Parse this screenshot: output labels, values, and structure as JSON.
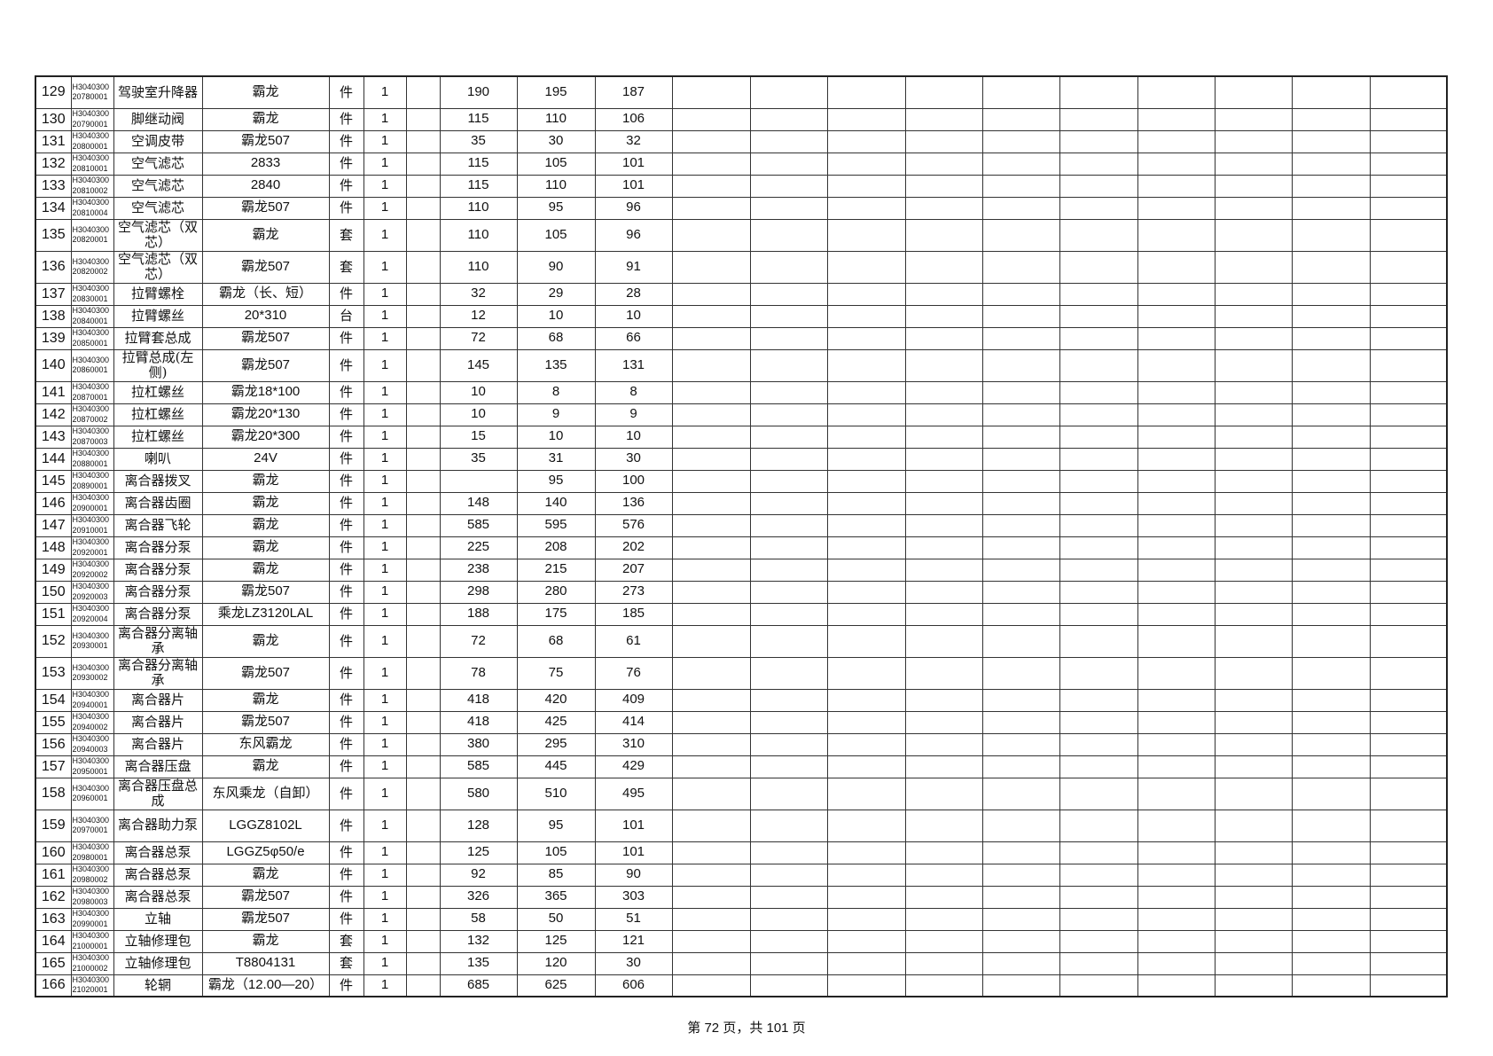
{
  "footer": {
    "page_label": "第 72 页，共 101 页"
  },
  "rows": [
    {
      "no": "129",
      "code": [
        "H3040300",
        "20780001"
      ],
      "name": "驾驶室升降器",
      "spec": "霸龙",
      "unit": "件",
      "qty": "1",
      "p1": "190",
      "p2": "195",
      "p3": "187",
      "tall": true
    },
    {
      "no": "130",
      "code": [
        "H3040300",
        "20790001"
      ],
      "name": "脚继动阀",
      "spec": "霸龙",
      "unit": "件",
      "qty": "1",
      "p1": "115",
      "p2": "110",
      "p3": "106"
    },
    {
      "no": "131",
      "code": [
        "H3040300",
        "20800001"
      ],
      "name": "空调皮带",
      "spec": "霸龙507",
      "unit": "件",
      "qty": "1",
      "p1": "35",
      "p2": "30",
      "p3": "32"
    },
    {
      "no": "132",
      "code": [
        "H3040300",
        "20810001"
      ],
      "name": "空气滤芯",
      "spec": "2833",
      "unit": "件",
      "qty": "1",
      "p1": "115",
      "p2": "105",
      "p3": "101"
    },
    {
      "no": "133",
      "code": [
        "H3040300",
        "20810002"
      ],
      "name": "空气滤芯",
      "spec": "2840",
      "unit": "件",
      "qty": "1",
      "p1": "115",
      "p2": "110",
      "p3": "101"
    },
    {
      "no": "134",
      "code": [
        "H3040300",
        "20810004"
      ],
      "name": "空气滤芯",
      "spec": "霸龙507",
      "unit": "件",
      "qty": "1",
      "p1": "110",
      "p2": "95",
      "p3": "96"
    },
    {
      "no": "135",
      "code": [
        "H3040300",
        "20820001"
      ],
      "name": "空气滤芯（双芯）",
      "spec": "霸龙",
      "unit": "套",
      "qty": "1",
      "p1": "110",
      "p2": "105",
      "p3": "96",
      "tall": true
    },
    {
      "no": "136",
      "code": [
        "H3040300",
        "20820002"
      ],
      "name": "空气滤芯（双芯）",
      "spec": "霸龙507",
      "unit": "套",
      "qty": "1",
      "p1": "110",
      "p2": "90",
      "p3": "91",
      "tall": true
    },
    {
      "no": "137",
      "code": [
        "H3040300",
        "20830001"
      ],
      "name": "拉臂螺栓",
      "spec": "霸龙（长、短）",
      "unit": "件",
      "qty": "1",
      "p1": "32",
      "p2": "29",
      "p3": "28"
    },
    {
      "no": "138",
      "code": [
        "H3040300",
        "20840001"
      ],
      "name": "拉臂螺丝",
      "spec": "20*310",
      "unit": "台",
      "qty": "1",
      "p1": "12",
      "p2": "10",
      "p3": "10"
    },
    {
      "no": "139",
      "code": [
        "H3040300",
        "20850001"
      ],
      "name": "拉臂套总成",
      "spec": "霸龙507",
      "unit": "件",
      "qty": "1",
      "p1": "72",
      "p2": "68",
      "p3": "66"
    },
    {
      "no": "140",
      "code": [
        "H3040300",
        "20860001"
      ],
      "name": "拉臂总成(左侧)",
      "spec": "霸龙507",
      "unit": "件",
      "qty": "1",
      "p1": "145",
      "p2": "135",
      "p3": "131",
      "tall": true
    },
    {
      "no": "141",
      "code": [
        "H3040300",
        "20870001"
      ],
      "name": "拉杠螺丝",
      "spec": "霸龙18*100",
      "unit": "件",
      "qty": "1",
      "p1": "10",
      "p2": "8",
      "p3": "8"
    },
    {
      "no": "142",
      "code": [
        "H3040300",
        "20870002"
      ],
      "name": "拉杠螺丝",
      "spec": "霸龙20*130",
      "unit": "件",
      "qty": "1",
      "p1": "10",
      "p2": "9",
      "p3": "9"
    },
    {
      "no": "143",
      "code": [
        "H3040300",
        "20870003"
      ],
      "name": "拉杠螺丝",
      "spec": "霸龙20*300",
      "unit": "件",
      "qty": "1",
      "p1": "15",
      "p2": "10",
      "p3": "10"
    },
    {
      "no": "144",
      "code": [
        "H3040300",
        "20880001"
      ],
      "name": "喇叭",
      "spec": "24V",
      "unit": "件",
      "qty": "1",
      "p1": "35",
      "p2": "31",
      "p3": "30"
    },
    {
      "no": "145",
      "code": [
        "H3040300",
        "20890001"
      ],
      "name": "离合器拨叉",
      "spec": "霸龙",
      "unit": "件",
      "qty": "1",
      "p1": "",
      "p2": "95",
      "p3": "100"
    },
    {
      "no": "146",
      "code": [
        "H3040300",
        "20900001"
      ],
      "name": "离合器齿圈",
      "spec": "霸龙",
      "unit": "件",
      "qty": "1",
      "p1": "148",
      "p2": "140",
      "p3": "136"
    },
    {
      "no": "147",
      "code": [
        "H3040300",
        "20910001"
      ],
      "name": "离合器飞轮",
      "spec": "霸龙",
      "unit": "件",
      "qty": "1",
      "p1": "585",
      "p2": "595",
      "p3": "576"
    },
    {
      "no": "148",
      "code": [
        "H3040300",
        "20920001"
      ],
      "name": "离合器分泵",
      "spec": "霸龙",
      "unit": "件",
      "qty": "1",
      "p1": "225",
      "p2": "208",
      "p3": "202"
    },
    {
      "no": "149",
      "code": [
        "H3040300",
        "20920002"
      ],
      "name": "离合器分泵",
      "spec": "霸龙",
      "unit": "件",
      "qty": "1",
      "p1": "238",
      "p2": "215",
      "p3": "207"
    },
    {
      "no": "150",
      "code": [
        "H3040300",
        "20920003"
      ],
      "name": "离合器分泵",
      "spec": "霸龙507",
      "unit": "件",
      "qty": "1",
      "p1": "298",
      "p2": "280",
      "p3": "273"
    },
    {
      "no": "151",
      "code": [
        "H3040300",
        "20920004"
      ],
      "name": "离合器分泵",
      "spec": "乘龙LZ3120LAL",
      "unit": "件",
      "qty": "1",
      "p1": "188",
      "p2": "175",
      "p3": "185"
    },
    {
      "no": "152",
      "code": [
        "H3040300",
        "20930001"
      ],
      "name": "离合器分离轴承",
      "spec": "霸龙",
      "unit": "件",
      "qty": "1",
      "p1": "72",
      "p2": "68",
      "p3": "61",
      "tall": true
    },
    {
      "no": "153",
      "code": [
        "H3040300",
        "20930002"
      ],
      "name": "离合器分离轴承",
      "spec": "霸龙507",
      "unit": "件",
      "qty": "1",
      "p1": "78",
      "p2": "75",
      "p3": "76",
      "tall": true
    },
    {
      "no": "154",
      "code": [
        "H3040300",
        "20940001"
      ],
      "name": "离合器片",
      "spec": "霸龙",
      "unit": "件",
      "qty": "1",
      "p1": "418",
      "p2": "420",
      "p3": "409"
    },
    {
      "no": "155",
      "code": [
        "H3040300",
        "20940002"
      ],
      "name": "离合器片",
      "spec": "霸龙507",
      "unit": "件",
      "qty": "1",
      "p1": "418",
      "p2": "425",
      "p3": "414"
    },
    {
      "no": "156",
      "code": [
        "H3040300",
        "20940003"
      ],
      "name": "离合器片",
      "spec": "东风霸龙",
      "unit": "件",
      "qty": "1",
      "p1": "380",
      "p2": "295",
      "p3": "310"
    },
    {
      "no": "157",
      "code": [
        "H3040300",
        "20950001"
      ],
      "name": "离合器压盘",
      "spec": "霸龙",
      "unit": "件",
      "qty": "1",
      "p1": "585",
      "p2": "445",
      "p3": "429"
    },
    {
      "no": "158",
      "code": [
        "H3040300",
        "20960001"
      ],
      "name": "离合器压盘总成",
      "spec": "东风乘龙（自卸）",
      "unit": "件",
      "qty": "1",
      "p1": "580",
      "p2": "510",
      "p3": "495",
      "tall": true
    },
    {
      "no": "159",
      "code": [
        "H3040300",
        "20970001"
      ],
      "name": "离合器助力泵",
      "spec": "LGGZ8102L",
      "unit": "件",
      "qty": "1",
      "p1": "128",
      "p2": "95",
      "p3": "101",
      "tall": true
    },
    {
      "no": "160",
      "code": [
        "H3040300",
        "20980001"
      ],
      "name": "离合器总泵",
      "spec": "LGGZ5φ50/e",
      "unit": "件",
      "qty": "1",
      "p1": "125",
      "p2": "105",
      "p3": "101"
    },
    {
      "no": "161",
      "code": [
        "H3040300",
        "20980002"
      ],
      "name": "离合器总泵",
      "spec": "霸龙",
      "unit": "件",
      "qty": "1",
      "p1": "92",
      "p2": "85",
      "p3": "90"
    },
    {
      "no": "162",
      "code": [
        "H3040300",
        "20980003"
      ],
      "name": "离合器总泵",
      "spec": "霸龙507",
      "unit": "件",
      "qty": "1",
      "p1": "326",
      "p2": "365",
      "p3": "303"
    },
    {
      "no": "163",
      "code": [
        "H3040300",
        "20990001"
      ],
      "name": "立轴",
      "spec": "霸龙507",
      "unit": "件",
      "qty": "1",
      "p1": "58",
      "p2": "50",
      "p3": "51"
    },
    {
      "no": "164",
      "code": [
        "H3040300",
        "21000001"
      ],
      "name": "立轴修理包",
      "spec": "霸龙",
      "unit": "套",
      "qty": "1",
      "p1": "132",
      "p2": "125",
      "p3": "121"
    },
    {
      "no": "165",
      "code": [
        "H3040300",
        "21000002"
      ],
      "name": "立轴修理包",
      "spec": "T8804131",
      "unit": "套",
      "qty": "1",
      "p1": "135",
      "p2": "120",
      "p3": "30"
    },
    {
      "no": "166",
      "code": [
        "H3040300",
        "21020001"
      ],
      "name": "轮辋",
      "spec": "霸龙（12.00—20）",
      "unit": "件",
      "qty": "1",
      "p1": "685",
      "p2": "625",
      "p3": "606"
    }
  ]
}
